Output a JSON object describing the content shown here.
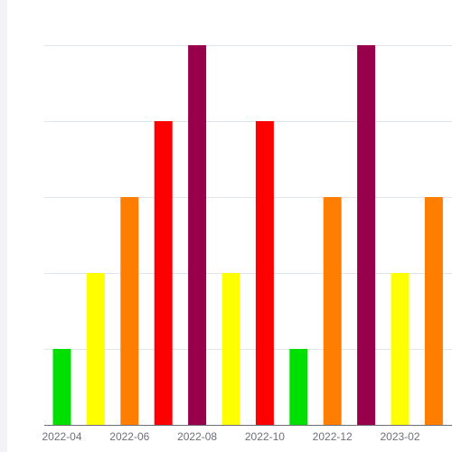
{
  "chart_data": {
    "type": "bar",
    "title": "",
    "xlabel": "",
    "ylabel": "",
    "categories": [
      "2022-04",
      "2022-05",
      "2022-06",
      "2022-07",
      "2022-08",
      "2022-09",
      "2022-10",
      "2022-11",
      "2022-12",
      "2023-01",
      "2023-02",
      "2023-03"
    ],
    "values": [
      1,
      2,
      3,
      4,
      5,
      2,
      4,
      1,
      3,
      5,
      2,
      3
    ],
    "x_tick_labels": [
      "2022-04",
      "2022-06",
      "2022-08",
      "2022-10",
      "2022-12",
      "2023-02"
    ],
    "ylim": [
      0,
      5
    ],
    "y_grid_values": [
      1,
      2,
      3,
      4,
      5
    ],
    "y_tick_labels_shown": false,
    "grid": true,
    "legend": "none",
    "level_colors": {
      "1": "#00e000",
      "2": "#ffff00",
      "3": "#ff7e00",
      "4": "#ff0000",
      "5": "#99004c"
    }
  }
}
